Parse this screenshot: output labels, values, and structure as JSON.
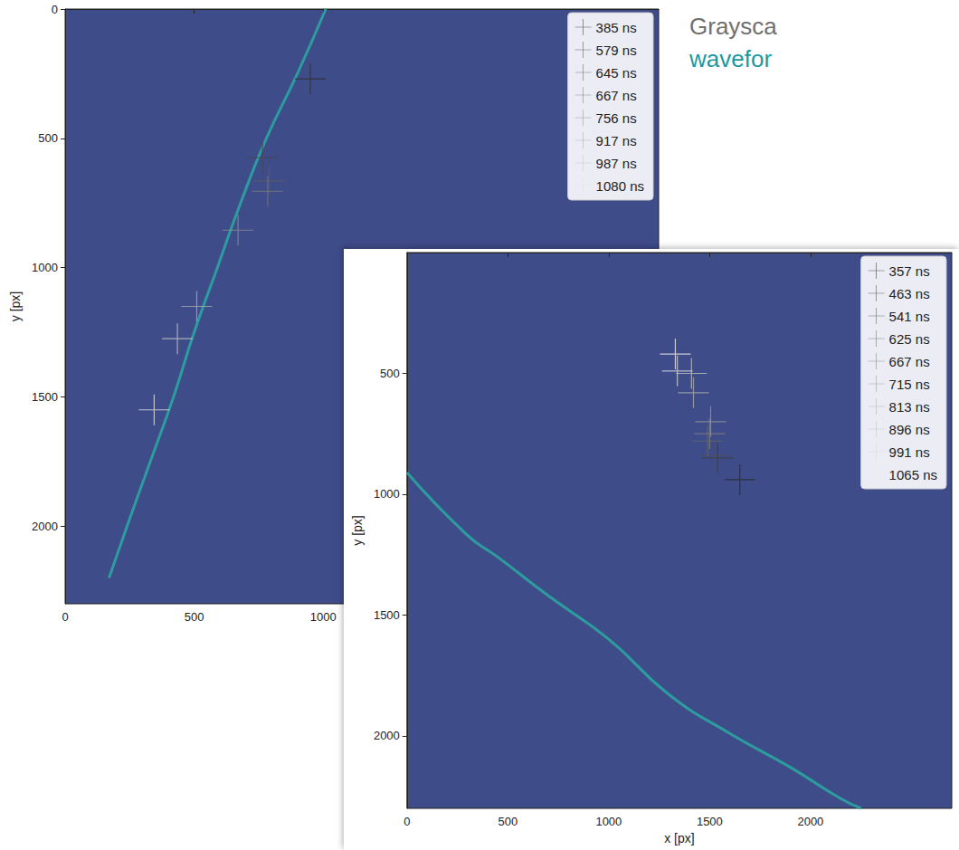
{
  "annotations": [
    "Graysca",
    "wavefor"
  ],
  "chart_data": [
    {
      "type": "scatter",
      "ylabel": "y [px]",
      "xlim": [
        0,
        2300
      ],
      "ylim": [
        0,
        2300
      ],
      "xticks": [
        0,
        500,
        1000
      ],
      "yticks": [
        0,
        500,
        1000,
        1500,
        2000
      ],
      "legend": "upper right",
      "marker": "plus",
      "track": {
        "color": "#2aa5a0",
        "x": [
          1010,
          900,
          780,
          680,
          590,
          500,
          420,
          330,
          240,
          170
        ],
        "y": [
          0,
          250,
          500,
          750,
          1000,
          1250,
          1500,
          1750,
          2000,
          2200
        ]
      },
      "series": [
        {
          "name": "385 ns",
          "color": "#303030",
          "x": [
            950
          ],
          "y": [
            270
          ]
        },
        {
          "name": "579 ns",
          "color": "#474747",
          "x": [
            765
          ],
          "y": [
            575
          ]
        },
        {
          "name": "645 ns",
          "color": "#5e5e5e",
          "x": [
            790
          ],
          "y": [
            665
          ]
        },
        {
          "name": "667 ns",
          "color": "#767676",
          "x": [
            785
          ],
          "y": [
            705
          ]
        },
        {
          "name": "756 ns",
          "color": "#8f8f8f",
          "x": [
            670
          ],
          "y": [
            855
          ]
        },
        {
          "name": "917 ns",
          "color": "#a9a9a9",
          "x": [
            510
          ],
          "y": [
            1150
          ]
        },
        {
          "name": "987 ns",
          "color": "#c4c4c4",
          "x": [
            435
          ],
          "y": [
            1275
          ]
        },
        {
          "name": "1080 ns",
          "color": "#e0e0e0",
          "x": [
            345
          ],
          "y": [
            1550
          ]
        }
      ]
    },
    {
      "type": "scatter",
      "xlabel": "x [px]",
      "ylabel": "y [px]",
      "xlim": [
        0,
        2700
      ],
      "ylim": [
        0,
        2300
      ],
      "xticks": [
        0,
        500,
        1000,
        1500,
        2000
      ],
      "yticks": [
        500,
        1000,
        1500,
        2000
      ],
      "legend": "upper right",
      "marker": "plus",
      "track": {
        "color": "#2aa5a0",
        "x": [
          0,
          300,
          450,
          700,
          1000,
          1300,
          1600,
          1900,
          2150,
          2250
        ],
        "y": [
          910,
          1170,
          1260,
          1420,
          1600,
          1830,
          1990,
          2130,
          2260,
          2300
        ]
      },
      "series": [
        {
          "name": "357 ns",
          "color": "#2a2a2a",
          "x": [
            1650
          ],
          "y": [
            940
          ]
        },
        {
          "name": "463 ns",
          "color": "#3e3e3e",
          "x": [
            1540
          ],
          "y": [
            850
          ]
        },
        {
          "name": "541 ns",
          "color": "#535353",
          "x": [
            1525
          ],
          "y": [
            840
          ]
        },
        {
          "name": "625 ns",
          "color": "#686868",
          "x": [
            1490
          ],
          "y": [
            780
          ]
        },
        {
          "name": "667 ns",
          "color": "#7e7e7e",
          "x": [
            1500
          ],
          "y": [
            750
          ]
        },
        {
          "name": "715 ns",
          "color": "#949494",
          "x": [
            1505
          ],
          "y": [
            700
          ]
        },
        {
          "name": "813 ns",
          "color": "#aaaaaa",
          "x": [
            1420
          ],
          "y": [
            580
          ]
        },
        {
          "name": "896 ns",
          "color": "#c1c1c1",
          "x": [
            1410
          ],
          "y": [
            500
          ]
        },
        {
          "name": "991 ns",
          "color": "#d8d8d8",
          "x": [
            1340
          ],
          "y": [
            490
          ]
        },
        {
          "name": "1065 ns",
          "color": "#ececec",
          "x": [
            1330
          ],
          "y": [
            420
          ]
        }
      ]
    }
  ]
}
